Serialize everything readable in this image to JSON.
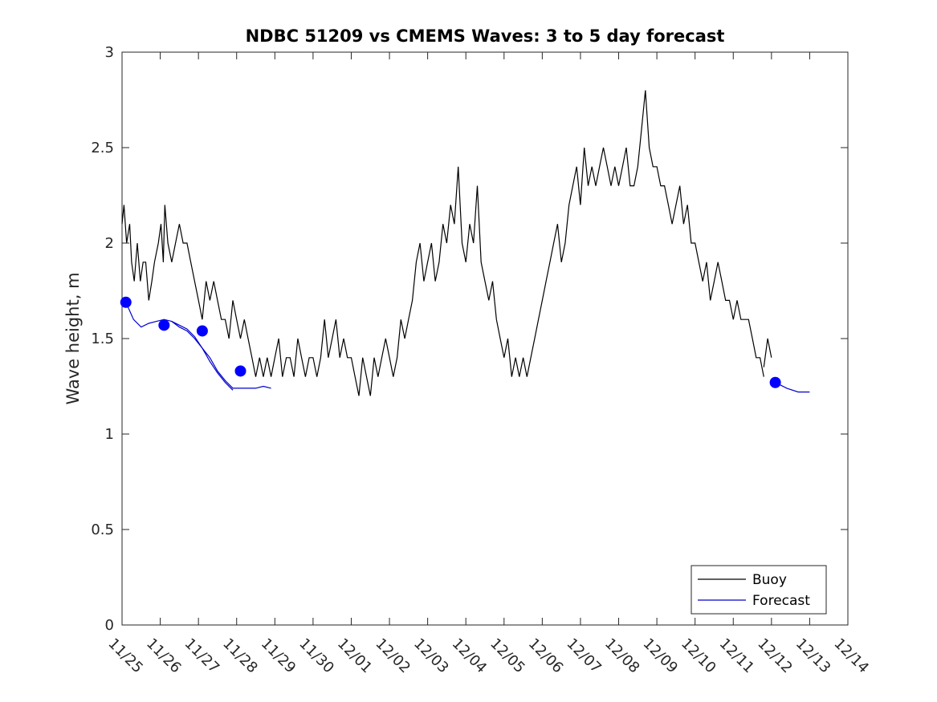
{
  "chart_data": {
    "type": "line",
    "title": "NDBC 51209 vs CMEMS Waves: 3 to 5 day forecast",
    "xlabel": "",
    "ylabel": "Wave height, m",
    "xlim": [
      "11/25",
      "12/14"
    ],
    "ylim": [
      0,
      3
    ],
    "x_tick_labels": [
      "11/25",
      "11/26",
      "11/27",
      "11/28",
      "11/29",
      "11/30",
      "12/01",
      "12/02",
      "12/03",
      "12/04",
      "12/05",
      "12/06",
      "12/07",
      "12/08",
      "12/09",
      "12/10",
      "12/11",
      "12/12",
      "12/13",
      "12/14"
    ],
    "y_ticks": [
      0,
      0.5,
      1,
      1.5,
      2,
      2.5,
      3
    ],
    "y_tick_labels": [
      "0",
      "0.5",
      "1",
      "1.5",
      "2",
      "2.5",
      "3"
    ],
    "grid": false,
    "legend": {
      "placement": "bottom-right",
      "entries": [
        "Buoy",
        "Forecast"
      ]
    },
    "series": [
      {
        "name": "Buoy",
        "color": "#000000",
        "segments": [
          [
            [
              0.0,
              2.1
            ],
            [
              0.05,
              2.2
            ],
            [
              0.12,
              2.0
            ],
            [
              0.2,
              2.1
            ],
            [
              0.25,
              1.9
            ],
            [
              0.32,
              1.8
            ],
            [
              0.4,
              2.0
            ],
            [
              0.48,
              1.8
            ],
            [
              0.55,
              1.9
            ],
            [
              0.62,
              1.9
            ],
            [
              0.7,
              1.7
            ],
            [
              0.78,
              1.8
            ],
            [
              0.85,
              1.9
            ],
            [
              0.95,
              2.0
            ],
            [
              1.02,
              2.1
            ],
            [
              1.08,
              1.9
            ],
            [
              1.12,
              2.2
            ],
            [
              1.2,
              2.0
            ],
            [
              1.3,
              1.9
            ],
            [
              1.4,
              2.0
            ],
            [
              1.5,
              2.1
            ],
            [
              1.6,
              2.0
            ],
            [
              1.7,
              2.0
            ],
            [
              1.8,
              1.9
            ],
            [
              1.9,
              1.8
            ],
            [
              2.0,
              1.7
            ],
            [
              2.1,
              1.6
            ],
            [
              2.2,
              1.8
            ],
            [
              2.3,
              1.7
            ],
            [
              2.4,
              1.8
            ],
            [
              2.5,
              1.7
            ],
            [
              2.6,
              1.6
            ],
            [
              2.7,
              1.6
            ],
            [
              2.8,
              1.5
            ],
            [
              2.9,
              1.7
            ],
            [
              3.0,
              1.6
            ],
            [
              3.1,
              1.5
            ],
            [
              3.2,
              1.6
            ],
            [
              3.3,
              1.5
            ],
            [
              3.4,
              1.4
            ],
            [
              3.5,
              1.3
            ],
            [
              3.6,
              1.4
            ],
            [
              3.7,
              1.3
            ],
            [
              3.8,
              1.4
            ],
            [
              3.9,
              1.3
            ],
            [
              4.0,
              1.4
            ],
            [
              4.1,
              1.5
            ],
            [
              4.2,
              1.3
            ],
            [
              4.3,
              1.4
            ],
            [
              4.4,
              1.4
            ],
            [
              4.5,
              1.3
            ],
            [
              4.6,
              1.5
            ],
            [
              4.7,
              1.4
            ],
            [
              4.8,
              1.3
            ],
            [
              4.9,
              1.4
            ],
            [
              5.0,
              1.4
            ],
            [
              5.1,
              1.3
            ],
            [
              5.2,
              1.4
            ],
            [
              5.3,
              1.6
            ],
            [
              5.4,
              1.4
            ],
            [
              5.5,
              1.5
            ],
            [
              5.6,
              1.6
            ],
            [
              5.7,
              1.4
            ],
            [
              5.8,
              1.5
            ],
            [
              5.9,
              1.4
            ],
            [
              6.0,
              1.4
            ],
            [
              6.1,
              1.3
            ],
            [
              6.2,
              1.2
            ],
            [
              6.3,
              1.4
            ],
            [
              6.4,
              1.3
            ],
            [
              6.5,
              1.2
            ],
            [
              6.6,
              1.4
            ],
            [
              6.7,
              1.3
            ],
            [
              6.8,
              1.4
            ],
            [
              6.9,
              1.5
            ],
            [
              7.0,
              1.4
            ],
            [
              7.1,
              1.3
            ],
            [
              7.2,
              1.4
            ],
            [
              7.3,
              1.6
            ],
            [
              7.4,
              1.5
            ],
            [
              7.5,
              1.6
            ],
            [
              7.6,
              1.7
            ],
            [
              7.7,
              1.9
            ],
            [
              7.8,
              2.0
            ],
            [
              7.9,
              1.8
            ],
            [
              8.0,
              1.9
            ],
            [
              8.1,
              2.0
            ],
            [
              8.2,
              1.8
            ],
            [
              8.3,
              1.9
            ],
            [
              8.4,
              2.1
            ],
            [
              8.5,
              2.0
            ],
            [
              8.6,
              2.2
            ],
            [
              8.7,
              2.1
            ],
            [
              8.8,
              2.4
            ],
            [
              8.9,
              2.0
            ],
            [
              9.0,
              1.9
            ],
            [
              9.1,
              2.1
            ],
            [
              9.2,
              2.0
            ],
            [
              9.3,
              2.3
            ],
            [
              9.4,
              1.9
            ],
            [
              9.5,
              1.8
            ],
            [
              9.6,
              1.7
            ],
            [
              9.7,
              1.8
            ],
            [
              9.8,
              1.6
            ],
            [
              9.9,
              1.5
            ],
            [
              10.0,
              1.4
            ],
            [
              10.1,
              1.5
            ],
            [
              10.2,
              1.3
            ],
            [
              10.3,
              1.4
            ],
            [
              10.4,
              1.3
            ],
            [
              10.5,
              1.4
            ],
            [
              10.6,
              1.3
            ],
            [
              10.7,
              1.4
            ],
            [
              10.8,
              1.5
            ],
            [
              10.9,
              1.6
            ],
            [
              11.0,
              1.7
            ],
            [
              11.1,
              1.8
            ],
            [
              11.2,
              1.9
            ],
            [
              11.3,
              2.0
            ],
            [
              11.4,
              2.1
            ],
            [
              11.5,
              1.9
            ],
            [
              11.6,
              2.0
            ],
            [
              11.7,
              2.2
            ],
            [
              11.8,
              2.3
            ],
            [
              11.9,
              2.4
            ],
            [
              12.0,
              2.2
            ],
            [
              12.1,
              2.5
            ],
            [
              12.2,
              2.3
            ],
            [
              12.3,
              2.4
            ],
            [
              12.4,
              2.3
            ],
            [
              12.5,
              2.4
            ],
            [
              12.6,
              2.5
            ],
            [
              12.7,
              2.4
            ],
            [
              12.8,
              2.3
            ],
            [
              12.9,
              2.4
            ],
            [
              13.0,
              2.3
            ],
            [
              13.1,
              2.4
            ],
            [
              13.2,
              2.5
            ],
            [
              13.3,
              2.3
            ],
            [
              13.4,
              2.3
            ],
            [
              13.5,
              2.4
            ],
            [
              13.6,
              2.6
            ],
            [
              13.7,
              2.8
            ],
            [
              13.8,
              2.5
            ],
            [
              13.9,
              2.4
            ],
            [
              14.0,
              2.4
            ],
            [
              14.1,
              2.3
            ],
            [
              14.2,
              2.3
            ],
            [
              14.3,
              2.2
            ],
            [
              14.4,
              2.1
            ],
            [
              14.5,
              2.2
            ],
            [
              14.6,
              2.3
            ],
            [
              14.7,
              2.1
            ],
            [
              14.8,
              2.2
            ],
            [
              14.9,
              2.0
            ],
            [
              15.0,
              2.0
            ],
            [
              15.1,
              1.9
            ],
            [
              15.2,
              1.8
            ],
            [
              15.3,
              1.9
            ],
            [
              15.4,
              1.7
            ],
            [
              15.5,
              1.8
            ],
            [
              15.6,
              1.9
            ],
            [
              15.7,
              1.8
            ],
            [
              15.8,
              1.7
            ],
            [
              15.9,
              1.7
            ],
            [
              16.0,
              1.6
            ],
            [
              16.1,
              1.7
            ],
            [
              16.2,
              1.6
            ],
            [
              16.3,
              1.6
            ],
            [
              16.4,
              1.6
            ],
            [
              16.5,
              1.5
            ],
            [
              16.6,
              1.4
            ],
            [
              16.7,
              1.4
            ],
            [
              16.8,
              1.3
            ]
          ],
          [
            [
              16.8,
              1.35
            ],
            [
              16.9,
              1.5
            ],
            [
              17.0,
              1.4
            ]
          ]
        ]
      },
      {
        "name": "Forecast",
        "color": "#0000cc",
        "segments": [
          [
            [
              0.1,
              1.69
            ],
            [
              0.3,
              1.6
            ],
            [
              0.5,
              1.56
            ],
            [
              0.7,
              1.58
            ],
            [
              0.9,
              1.59
            ],
            [
              1.1,
              1.6
            ],
            [
              1.3,
              1.59
            ],
            [
              1.5,
              1.56
            ],
            [
              1.7,
              1.54
            ],
            [
              1.9,
              1.5
            ],
            [
              2.1,
              1.45
            ],
            [
              2.3,
              1.4
            ],
            [
              2.5,
              1.33
            ],
            [
              2.7,
              1.28
            ],
            [
              2.9,
              1.24
            ],
            [
              3.1,
              1.24
            ],
            [
              3.3,
              1.24
            ],
            [
              3.5,
              1.24
            ],
            [
              3.7,
              1.25
            ],
            [
              3.9,
              1.24
            ]
          ],
          [
            [
              1.3,
              1.59
            ],
            [
              1.5,
              1.57
            ],
            [
              1.7,
              1.55
            ],
            [
              1.9,
              1.51
            ],
            [
              2.1,
              1.45
            ],
            [
              2.3,
              1.38
            ],
            [
              2.5,
              1.32
            ],
            [
              2.7,
              1.27
            ],
            [
              2.9,
              1.23
            ]
          ],
          [
            [
              17.1,
              1.27
            ],
            [
              17.4,
              1.24
            ],
            [
              17.7,
              1.22
            ],
            [
              18.0,
              1.22
            ]
          ]
        ],
        "markers": [
          [
            0.1,
            1.69
          ],
          [
            1.1,
            1.57
          ],
          [
            2.1,
            1.54
          ],
          [
            3.1,
            1.33
          ],
          [
            17.1,
            1.27
          ]
        ]
      }
    ]
  }
}
